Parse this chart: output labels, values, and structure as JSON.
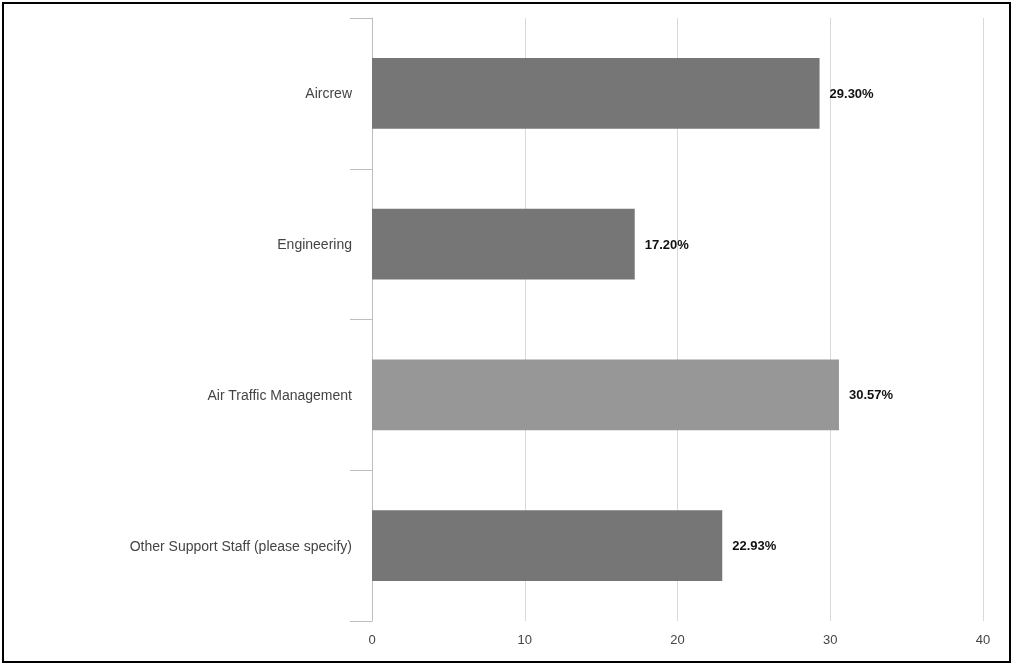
{
  "chart_data": {
    "type": "bar",
    "orientation": "horizontal",
    "categories": [
      "Aircrew",
      "Engineering",
      "Air Traffic Management",
      "Other Support Staff (please specify)"
    ],
    "values": [
      29.3,
      17.2,
      30.57,
      22.93
    ],
    "colors": [
      "#767676",
      "#767676",
      "#979797",
      "#767676"
    ],
    "value_labels": [
      "29.30%",
      "17.20%",
      "30.57%",
      "22.93%"
    ],
    "xlim": [
      0,
      40
    ],
    "xticks": [
      0,
      10,
      20,
      30,
      40
    ],
    "grid": "x"
  }
}
